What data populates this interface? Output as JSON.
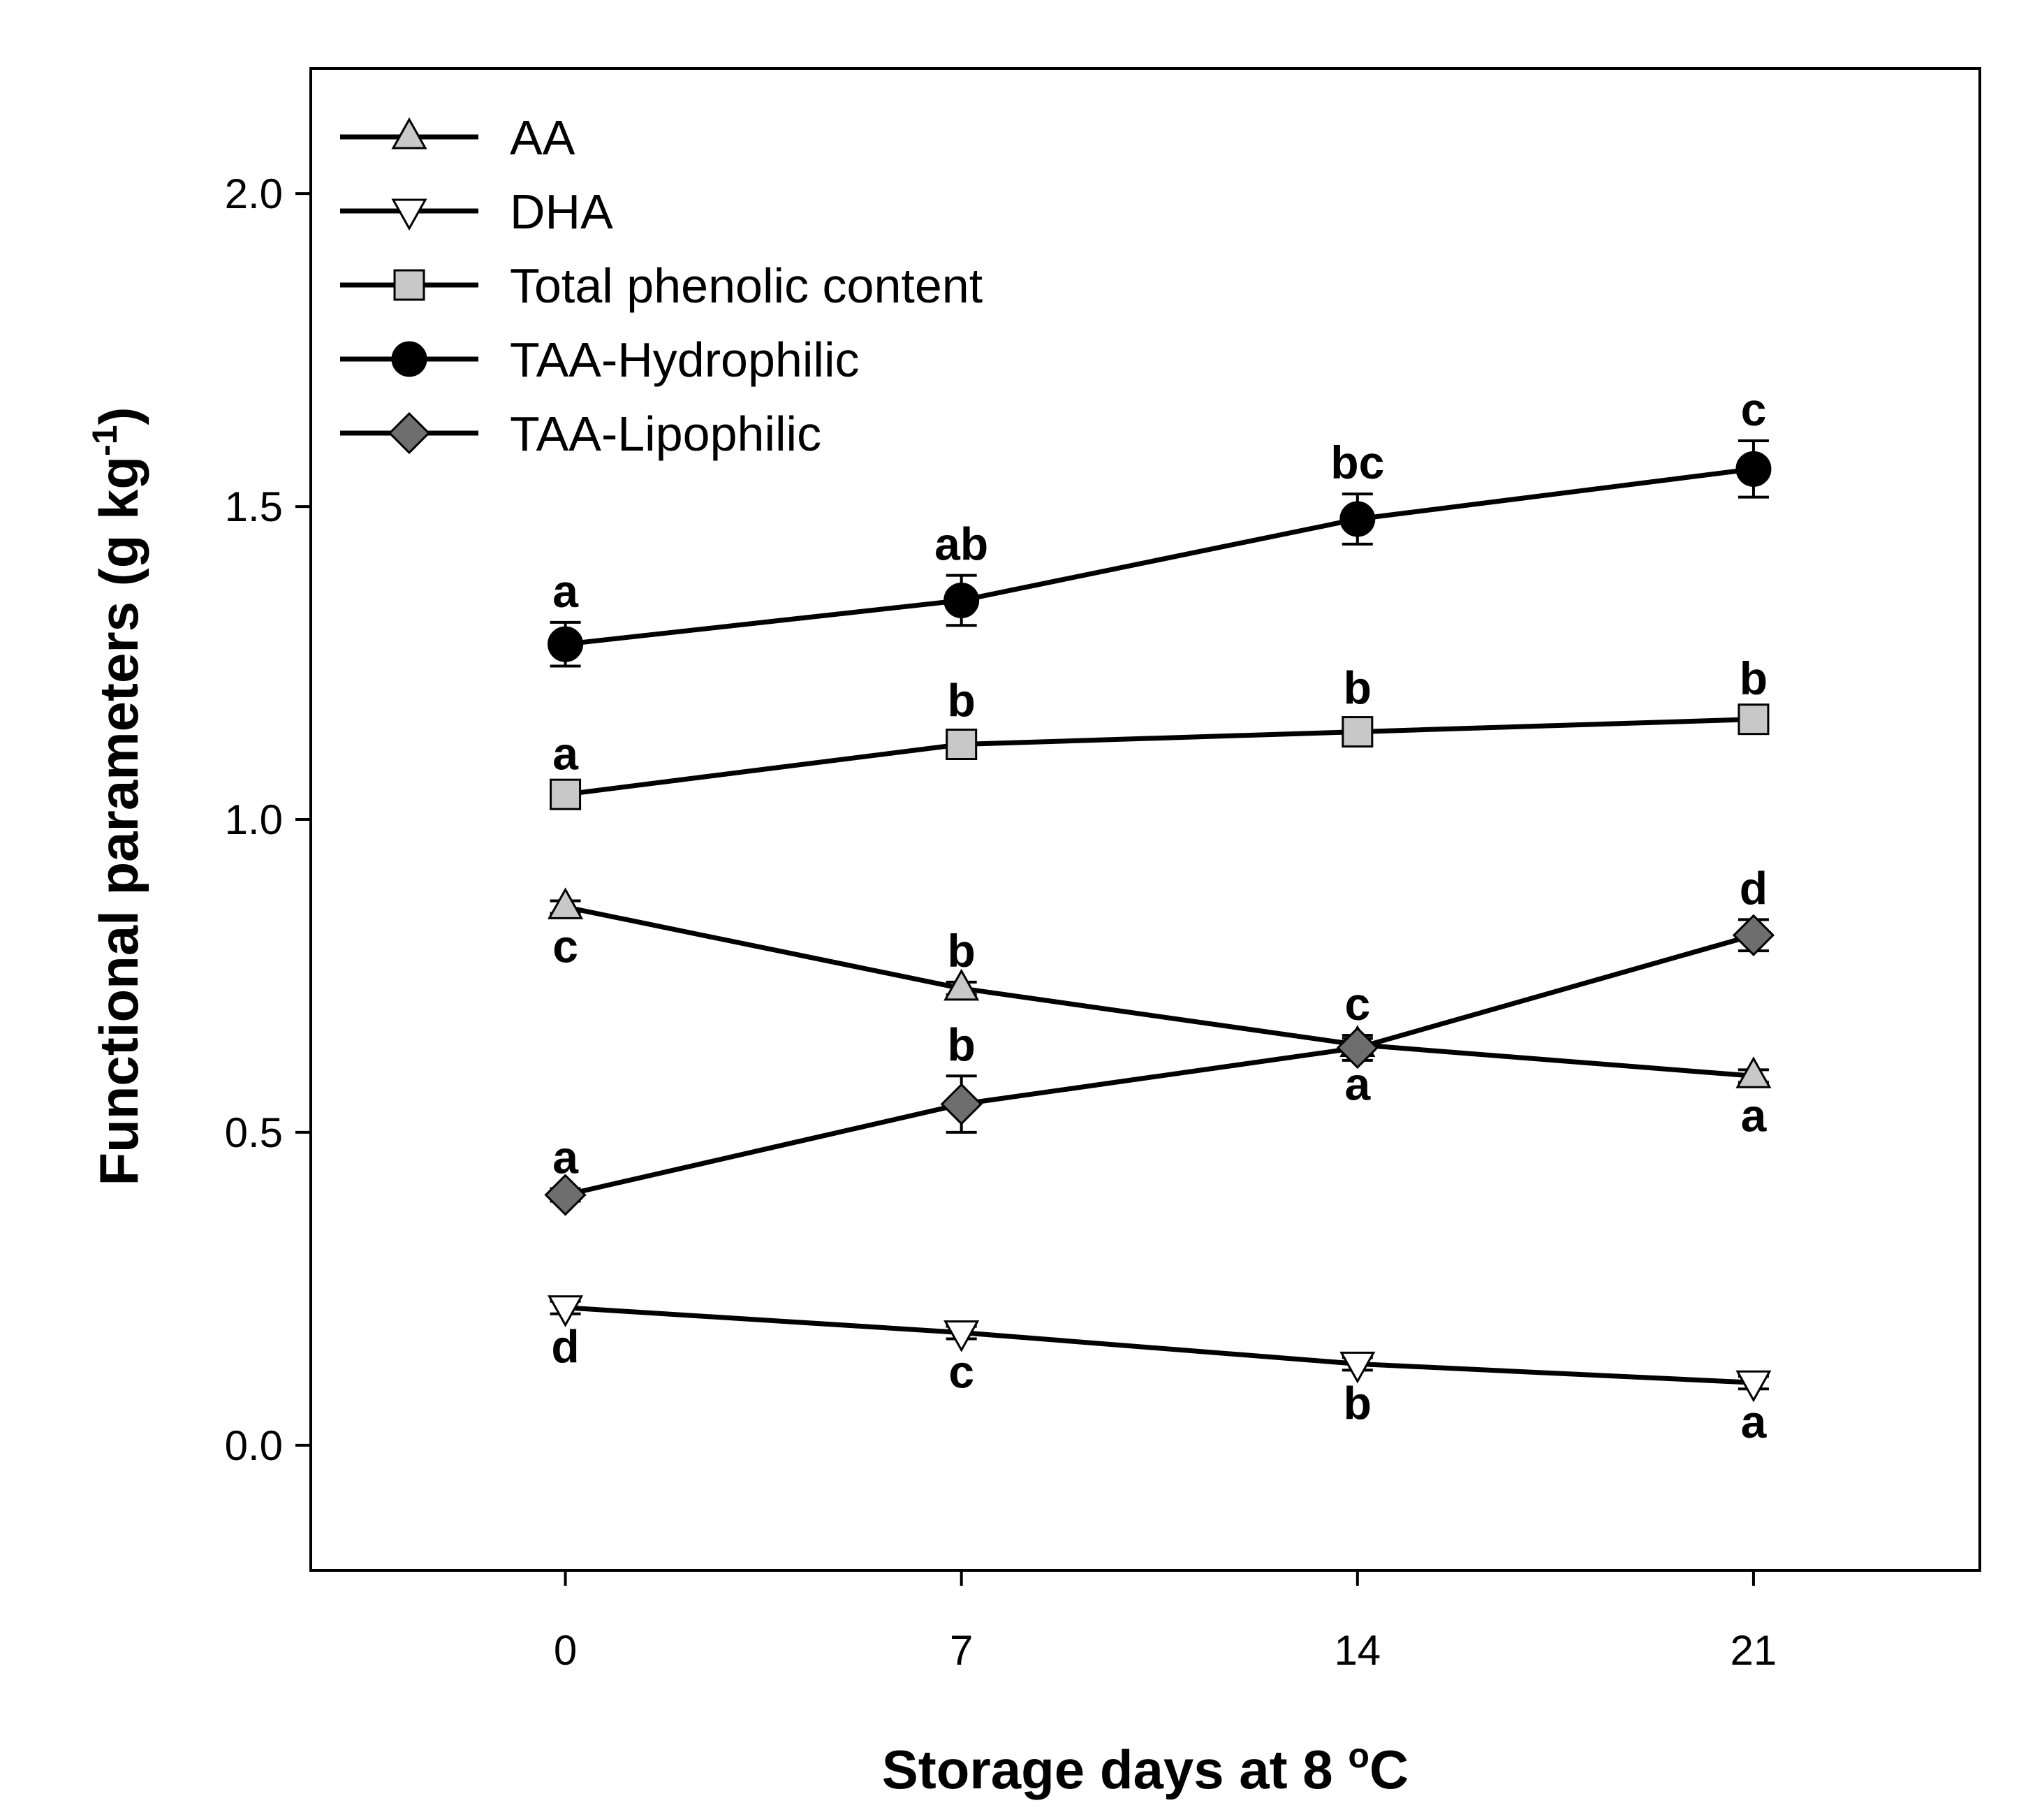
{
  "chart_data": {
    "type": "line",
    "title": "",
    "xlabel": "Storage days at 8 ºC",
    "xlabel_parts": [
      "Storage days at 8 ",
      "o",
      "C"
    ],
    "ylabel": "Functional parameters (g kg-1)",
    "ylabel_parts": [
      "Functional parameters (g kg",
      "-1",
      ")"
    ],
    "x": [
      0,
      7,
      14,
      21
    ],
    "x_tick_labels": [
      "0",
      "7",
      "14",
      "21"
    ],
    "y_tick_labels": [
      "0.0",
      "0.5",
      "1.0",
      "1.5",
      "2.0"
    ],
    "y_ticks": [
      0.0,
      0.5,
      1.0,
      1.5,
      2.0
    ],
    "xlim": [
      -4.5,
      25
    ],
    "ylim": [
      -0.2,
      2.2
    ],
    "legend_position": "top-left",
    "series": [
      {
        "name": "AA",
        "marker": "triangle-up",
        "marker_fill": "#c8c8c8",
        "values": [
          0.86,
          0.73,
          0.64,
          0.59
        ],
        "errors": [
          0.01,
          0.01,
          0.01,
          0.01
        ],
        "letters": [
          "c",
          "b",
          "a",
          "a"
        ],
        "letter_side": [
          "below",
          "above",
          "below",
          "below"
        ]
      },
      {
        "name": "DHA",
        "marker": "triangle-down",
        "marker_fill": "#ffffff",
        "values": [
          0.22,
          0.18,
          0.13,
          0.1
        ],
        "errors": [
          0.01,
          0.01,
          0.01,
          0.01
        ],
        "letters": [
          "d",
          "c",
          "b",
          "a"
        ],
        "letter_side": [
          "below",
          "below",
          "below",
          "below"
        ]
      },
      {
        "name": "Total phenolic content",
        "marker": "square",
        "marker_fill": "#c8c8c8",
        "values": [
          1.04,
          1.12,
          1.14,
          1.16
        ],
        "errors": [
          0.015,
          0.02,
          0.02,
          0.015
        ],
        "letters": [
          "a",
          "b",
          "b",
          "b"
        ],
        "letter_side": [
          "above",
          "above",
          "above",
          "above"
        ]
      },
      {
        "name": "TAA-Hydrophilic",
        "marker": "circle",
        "marker_fill": "#000000",
        "values": [
          1.28,
          1.35,
          1.48,
          1.56
        ],
        "errors": [
          0.035,
          0.04,
          0.04,
          0.045
        ],
        "letters": [
          "a",
          "ab",
          "bc",
          "c"
        ],
        "letter_side": [
          "above",
          "above",
          "above",
          "above"
        ]
      },
      {
        "name": "TAA-Lipophilic",
        "marker": "diamond",
        "marker_fill": "#6e6e6e",
        "values": [
          0.4,
          0.545,
          0.635,
          0.815
        ],
        "errors": [
          0.01,
          0.045,
          0.02,
          0.025
        ],
        "letters": [
          "a",
          "b",
          "c",
          "d"
        ],
        "letter_side": [
          "above",
          "above",
          "above",
          "above"
        ]
      }
    ]
  }
}
